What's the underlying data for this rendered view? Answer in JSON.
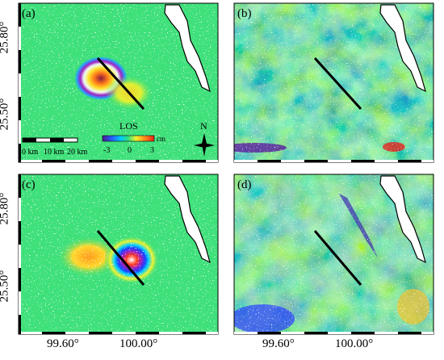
{
  "figure": {
    "panels": [
      {
        "id": "a",
        "label": "(a)",
        "type": "deformation"
      },
      {
        "id": "b",
        "label": "(b)",
        "type": "residual"
      },
      {
        "id": "c",
        "label": "(c)",
        "type": "deformation"
      },
      {
        "id": "d",
        "label": "(d)",
        "type": "residual"
      }
    ],
    "y_ticks": [
      "25.80°",
      "25.50°"
    ],
    "x_ticks": [
      "99.60°",
      "100.00°"
    ],
    "scalebar": {
      "labels": [
        "0 km",
        "10 km",
        "20 km"
      ]
    },
    "colorbar": {
      "title": "LOS",
      "unit": "cm",
      "tick_labels": [
        "-3",
        "0",
        "3"
      ],
      "range": [
        -3,
        3
      ]
    },
    "north_arrow": {
      "label": "N"
    },
    "colors": {
      "background": "#3ee07a",
      "lake": "#ffffff",
      "fault": "#000000"
    }
  }
}
